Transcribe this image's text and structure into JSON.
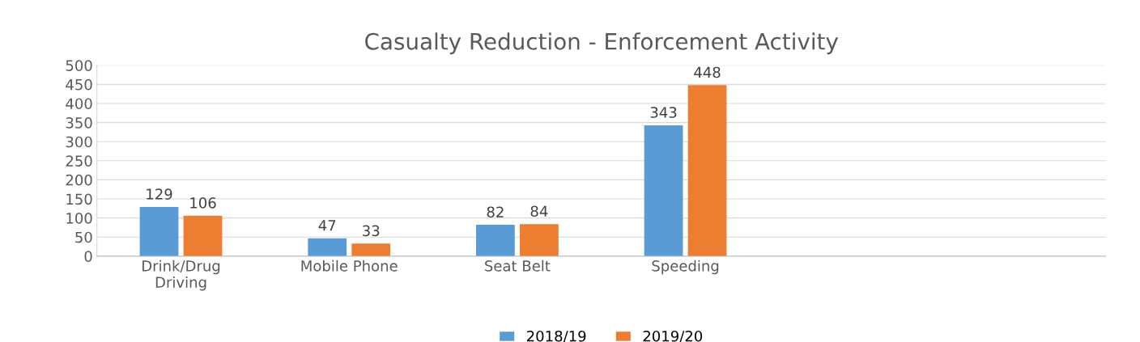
{
  "chart_data": {
    "type": "bar",
    "title": "Casualty Reduction - Enforcement Activity",
    "categories": [
      "Drink/Drug\nDriving",
      "Mobile Phone",
      "Seat Belt",
      "Speeding",
      null,
      null
    ],
    "series": [
      {
        "name": "2018/19",
        "color": "#5b9bd5",
        "values": [
          129,
          47,
          82,
          343,
          null,
          null
        ]
      },
      {
        "name": "2019/20",
        "color": "#ed7d31",
        "values": [
          106,
          33,
          84,
          448,
          null,
          null
        ]
      }
    ],
    "ylim": [
      0,
      500
    ],
    "yticks": [
      0,
      50,
      100,
      150,
      200,
      250,
      300,
      350,
      400,
      450,
      500
    ],
    "grid": "y",
    "legend": "bottom",
    "data_labels": true
  }
}
